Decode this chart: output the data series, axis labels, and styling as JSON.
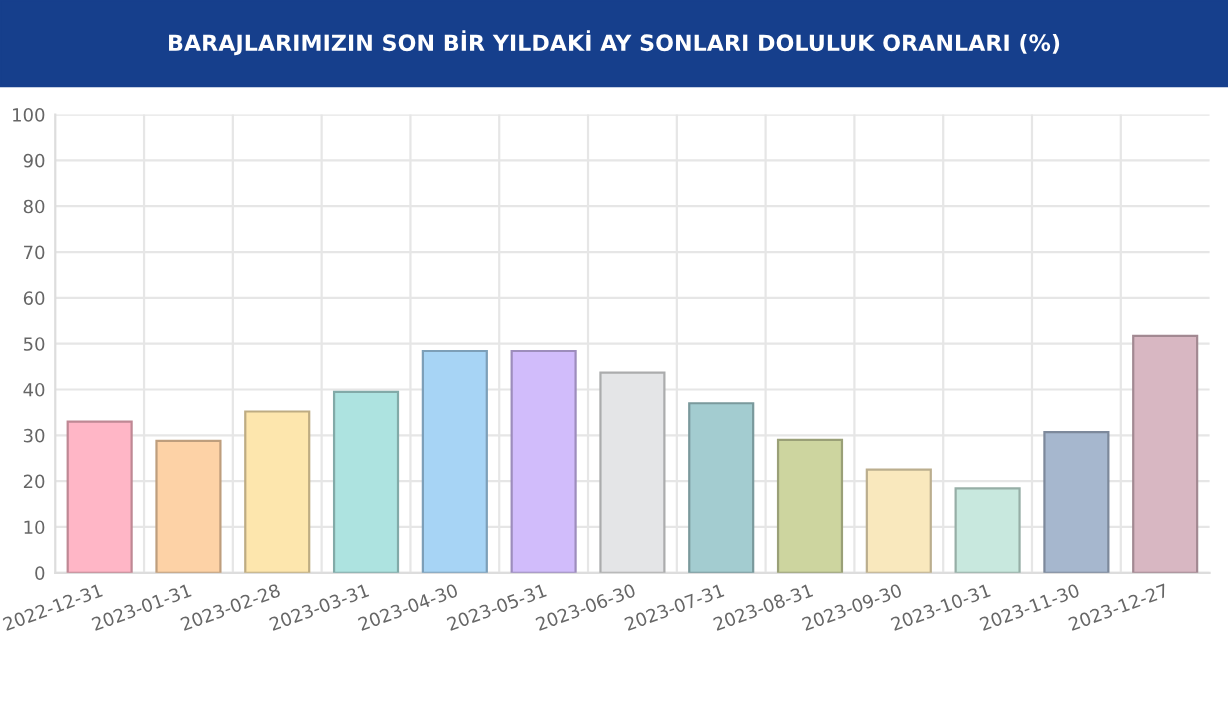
{
  "chart_data": {
    "type": "bar",
    "title": "BARAJLARIMIZIN SON BİR YILDAKİ AY SONLARI DOLULUK ORANLARI (%)",
    "categories": [
      "2022-12-31",
      "2023-01-31",
      "2023-02-28",
      "2023-03-31",
      "2023-04-30",
      "2023-05-31",
      "2023-06-30",
      "2023-07-31",
      "2023-08-31",
      "2023-09-30",
      "2023-10-31",
      "2023-11-30",
      "2023-12-27"
    ],
    "values": [
      33,
      28.8,
      35.2,
      39.5,
      48.4,
      48.4,
      43.7,
      37,
      29,
      22.5,
      18.4,
      30.7,
      51.7
    ],
    "colors": [
      "#ffb6c6",
      "#fdd2a6",
      "#fde6ad",
      "#ade3e0",
      "#a7d4f5",
      "#d1bcfb",
      "#e4e5e7",
      "#a3ccd0",
      "#cdd59f",
      "#f9e8bd",
      "#c8e8de",
      "#a6b7ce",
      "#d8b7c2"
    ],
    "ylim": [
      0,
      100
    ],
    "yticks": [
      0,
      10,
      20,
      30,
      40,
      50,
      60,
      70,
      80,
      90,
      100
    ],
    "grid": true
  }
}
